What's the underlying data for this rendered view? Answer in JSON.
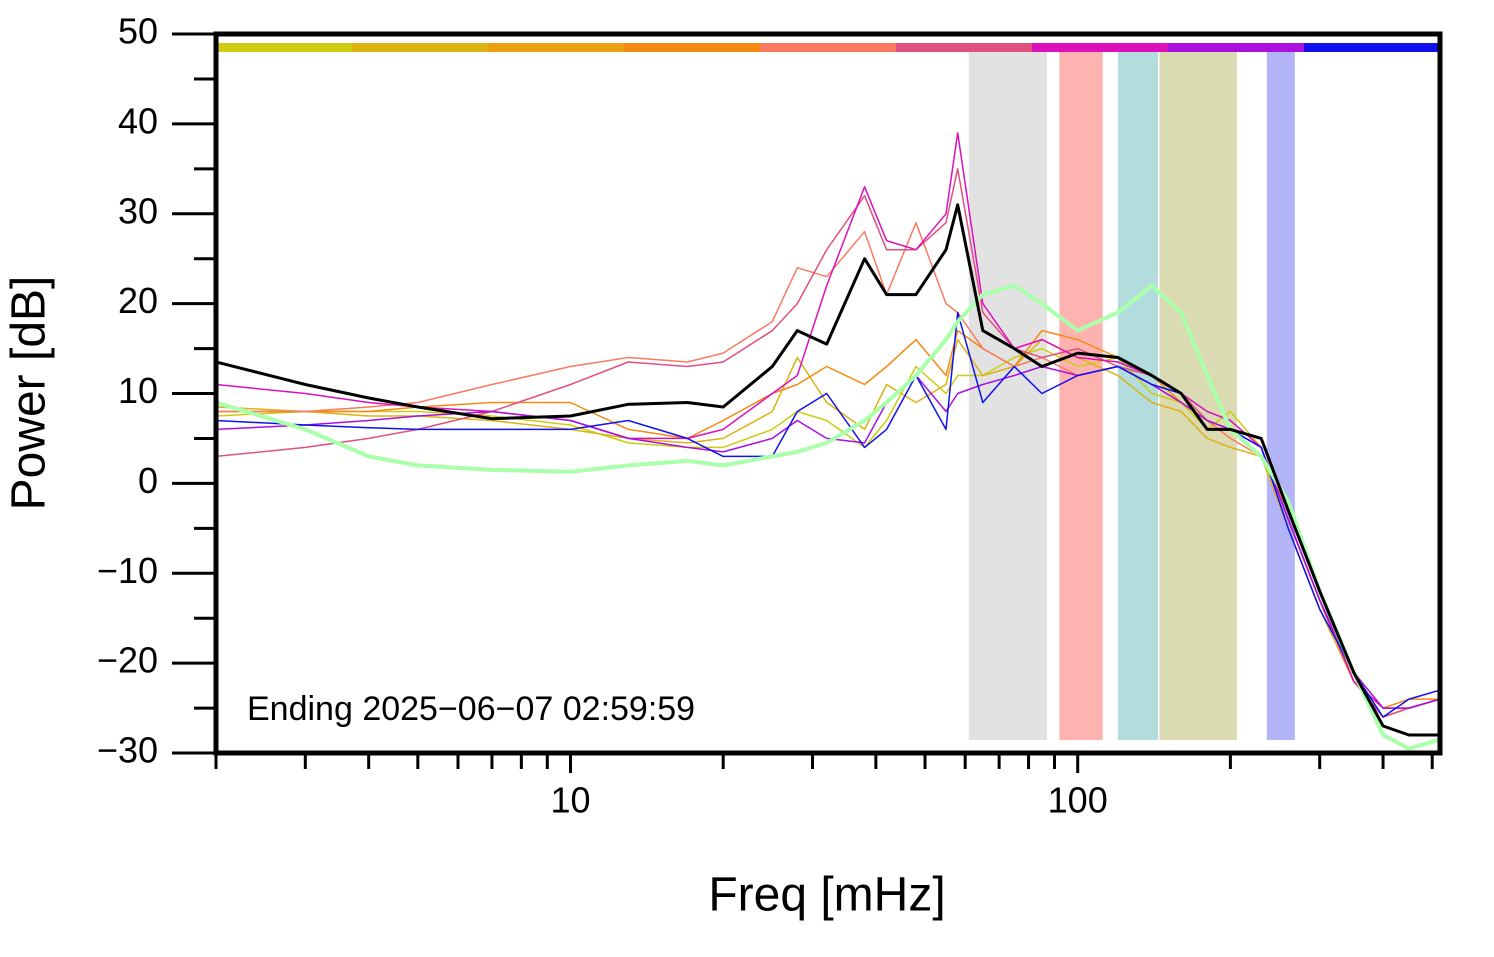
{
  "chart_data": {
    "type": "line",
    "xlabel": "Freq [mHz]",
    "ylabel": "Power [dB]",
    "annotation": "Ending 2025−06−07 02:59:59",
    "log_x": true,
    "xlim": [
      2,
      518
    ],
    "ylim": [
      -30,
      50
    ],
    "xticks": [
      10,
      100
    ],
    "x_minor_ticks": [
      2,
      3,
      4,
      5,
      6,
      7,
      8,
      9,
      20,
      30,
      40,
      50,
      60,
      70,
      80,
      90,
      200,
      300,
      400,
      500
    ],
    "yticks": [
      {
        "value": -30,
        "label": "−30"
      },
      {
        "value": -20,
        "label": "−20"
      },
      {
        "value": -10,
        "label": "−10"
      },
      0,
      10,
      20,
      30,
      40,
      50
    ],
    "y_minor_ticks": [
      -25,
      -15,
      -5,
      5,
      15,
      25,
      35,
      45
    ],
    "color_bar": [
      "#cccc11",
      "#ddb211",
      "#ee9f11",
      "#f58a11",
      "#fa7a60",
      "#e05080",
      "#dd11bb",
      "#aa11dd",
      "#1111ee"
    ],
    "bands": [
      {
        "range": [
          61,
          87
        ],
        "color": "#e2e2e2"
      },
      {
        "range": [
          92,
          112
        ],
        "color": "#ffb3b0"
      },
      {
        "range": [
          120,
          144
        ],
        "color": "#b3dcdc"
      },
      {
        "range": [
          145,
          206
        ],
        "color": "#dadab3"
      },
      {
        "range": [
          236,
          268
        ],
        "color": "#b3b3f8"
      }
    ],
    "x": [
      2,
      3,
      4,
      5,
      7,
      10,
      13,
      17,
      20,
      25,
      28,
      32,
      38,
      42,
      48,
      55,
      58,
      65,
      75,
      85,
      100,
      120,
      140,
      160,
      180,
      200,
      230,
      260,
      300,
      350,
      400,
      450,
      518
    ],
    "series": [
      {
        "color": "#cccc11",
        "width": 1.5,
        "values": [
          7.5,
          8,
          8,
          8,
          7.5,
          6.5,
          4.5,
          4,
          4,
          6,
          8,
          7,
          4,
          7,
          13,
          10,
          12,
          12,
          14,
          15,
          13,
          14,
          10,
          9,
          6,
          8,
          4,
          -4,
          -13,
          -22,
          -26,
          -25,
          -24
        ]
      },
      {
        "color": "#ddb211",
        "width": 1.5,
        "values": [
          8.5,
          8,
          7.5,
          7.5,
          7,
          6,
          5,
          4.5,
          5,
          8,
          14,
          9,
          6,
          11,
          9,
          11,
          16,
          12,
          13,
          16,
          14,
          12,
          9,
          8,
          5,
          4,
          3,
          -5,
          -14,
          -22,
          -26,
          -25,
          -24
        ]
      },
      {
        "color": "#f58a11",
        "width": 1.5,
        "values": [
          8,
          8,
          8,
          8.5,
          9,
          9,
          6,
          5,
          7,
          10,
          11,
          13,
          11,
          13,
          16,
          12,
          17,
          15,
          13,
          17,
          16,
          14,
          12,
          9,
          7,
          6,
          3,
          -3,
          -12,
          -22,
          -25,
          -24,
          -24
        ]
      },
      {
        "color": "#fa7a60",
        "width": 1.5,
        "values": [
          8,
          8,
          8.5,
          9,
          11,
          13,
          14,
          13.5,
          14.5,
          18,
          24,
          23,
          28,
          21,
          29,
          20,
          19,
          15,
          13,
          14,
          12,
          13,
          11,
          9,
          7,
          5,
          3,
          -3,
          -12,
          -22,
          -26,
          -25,
          -24
        ]
      },
      {
        "color": "#e05080",
        "width": 1.5,
        "values": [
          3,
          4,
          5,
          6,
          8,
          11,
          13.5,
          13,
          13.5,
          17,
          20,
          26,
          32,
          26,
          26,
          29,
          35,
          19,
          15,
          14,
          15,
          13,
          12,
          10,
          7,
          6,
          4,
          -4,
          -13,
          -22,
          -26,
          -25,
          -24
        ]
      },
      {
        "color": "#dd11bb",
        "width": 1.5,
        "values": [
          11,
          10,
          9,
          8.5,
          8,
          7,
          5,
          5,
          6,
          10,
          12,
          22,
          33,
          27,
          26,
          30,
          39,
          20,
          15,
          16,
          14,
          13.5,
          12,
          10,
          8,
          7,
          4,
          -4,
          -13,
          -22,
          -25,
          -25,
          -24
        ]
      },
      {
        "color": "#aa11dd",
        "width": 1.5,
        "values": [
          6,
          6.5,
          7,
          7.5,
          8,
          7,
          5,
          4,
          3.5,
          5,
          7,
          5,
          4.5,
          9,
          12,
          8,
          10,
          11,
          12,
          13,
          12,
          13,
          11,
          9,
          7,
          6,
          4,
          -4,
          -13,
          -21,
          -25,
          -25,
          -24
        ]
      },
      {
        "color": "#1111ee",
        "width": 1.5,
        "values": [
          7,
          6.5,
          6.2,
          6,
          6,
          6,
          7,
          5,
          3,
          3,
          8,
          10,
          4,
          6,
          12,
          6,
          19,
          9,
          13,
          10,
          12,
          13,
          11,
          10,
          6,
          6,
          4,
          -5,
          -14,
          -21,
          -26,
          -24,
          -23
        ]
      },
      {
        "color": "#aaffaa",
        "width": 4,
        "values": [
          9,
          6,
          3,
          2,
          1.5,
          1.3,
          2,
          2.5,
          2,
          3,
          3.5,
          4.5,
          7,
          9,
          12,
          16,
          18,
          21,
          22,
          20,
          17,
          19,
          22,
          19,
          12,
          6,
          3,
          -2,
          -12,
          -21,
          -28,
          -29.5,
          -28.5
        ]
      },
      {
        "color": "#000000",
        "width": 3,
        "values": [
          13.5,
          11,
          9.5,
          8.5,
          7.2,
          7.5,
          8.8,
          9,
          8.5,
          13,
          17,
          15.5,
          25,
          21,
          21,
          26,
          31,
          17,
          15,
          13,
          14.5,
          14,
          12,
          10,
          6,
          6,
          5,
          -3,
          -12,
          -21,
          -27,
          -28,
          -28
        ]
      }
    ]
  }
}
